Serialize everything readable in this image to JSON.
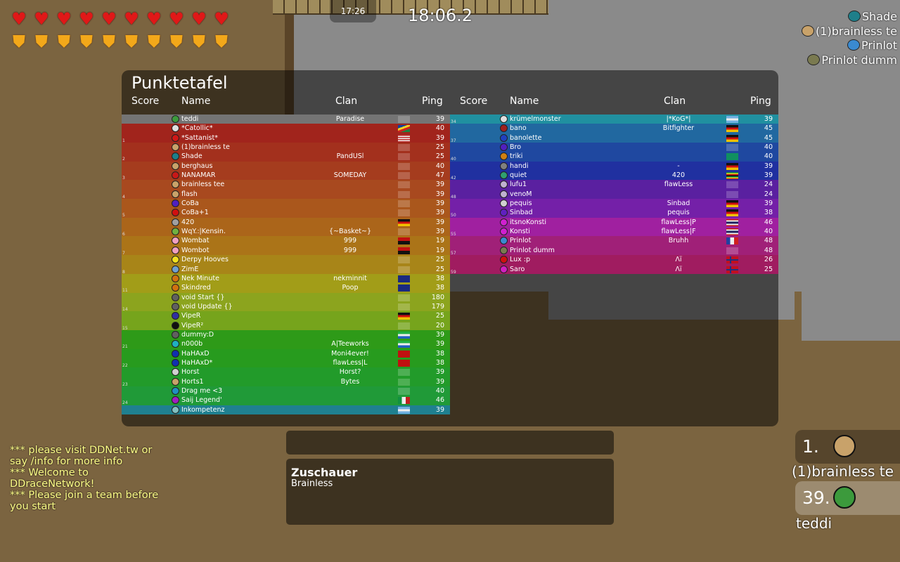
{
  "hud": {
    "hearts": 10,
    "shields": 10,
    "clock": "17:26",
    "race_time": "18:06.2"
  },
  "players_nearby": [
    {
      "name": "Shade",
      "color": "#1f7f8a"
    },
    {
      "name": "(1)brainless te",
      "color": "#c8a26a"
    },
    {
      "name": "Prinlot",
      "color": "#3a8ad0"
    },
    {
      "name": "Prinlot dumm",
      "color": "#7a7a50"
    }
  ],
  "scoreboard": {
    "title": "Punktetafel",
    "headers": {
      "score": "Score",
      "name": "Name",
      "clan": "Clan",
      "ping": "Ping"
    },
    "left": [
      {
        "team": "",
        "name": "teddi",
        "clan": "Paradise",
        "flag": "default",
        "ping": "39",
        "color": "#747474",
        "skin": "#3c9a3c"
      },
      {
        "team": "",
        "name": "*Catollic*",
        "clan": "",
        "flag": "SC",
        "ping": "40",
        "color": "#a1241c",
        "skin": "#e0e0e0"
      },
      {
        "team": "1",
        "name": "*Sattanist*",
        "clan": "",
        "flag": "US",
        "ping": "39",
        "color": "#a1241c",
        "skin": "#d01818"
      },
      {
        "team": "",
        "name": "(1)brainless te",
        "clan": "",
        "flag": "default",
        "ping": "25",
        "color": "#a3301d",
        "skin": "#c8a26a"
      },
      {
        "team": "2",
        "name": "Shade",
        "clan": "PandUSl",
        "flag": "default",
        "ping": "25",
        "color": "#a3301d",
        "skin": "#1f7f8a"
      },
      {
        "team": "",
        "name": "berghaus",
        "clan": "",
        "flag": "default",
        "ping": "40",
        "color": "#a53c1e",
        "skin": "#c8a26a"
      },
      {
        "team": "3",
        "name": "NANAMAR",
        "clan": "SOMEDAY",
        "flag": "default",
        "ping": "47",
        "color": "#a53c1e",
        "skin": "#c81818"
      },
      {
        "team": "",
        "name": "brainless tee",
        "clan": "",
        "flag": "default",
        "ping": "39",
        "color": "#a8491f",
        "skin": "#c8a26a"
      },
      {
        "team": "4",
        "name": "flash",
        "clan": "",
        "flag": "default",
        "ping": "39",
        "color": "#a8491f",
        "skin": "#c8a26a"
      },
      {
        "team": "",
        "name": "CoBa",
        "clan": "",
        "flag": "default",
        "ping": "39",
        "color": "#aa571c",
        "skin": "#5020c0"
      },
      {
        "team": "5",
        "name": "CoBa+1",
        "clan": "",
        "flag": "default",
        "ping": "39",
        "color": "#aa571c",
        "skin": "#d01010"
      },
      {
        "team": "",
        "name": "420",
        "clan": "",
        "flag": "DE",
        "ping": "39",
        "color": "#ab651a",
        "skin": "#a0a0a0"
      },
      {
        "team": "6",
        "name": "WqY.:|Kensin.",
        "clan": "{~Basket~}",
        "flag": "default",
        "ping": "39",
        "color": "#ab651a",
        "skin": "#70b040"
      },
      {
        "team": "",
        "name": "Wombat",
        "clan": "999",
        "flag": "AO",
        "ping": "19",
        "color": "#ab7418",
        "skin": "#f0a0c0"
      },
      {
        "team": "7",
        "name": "Wombot",
        "clan": "999",
        "flag": "AO",
        "ping": "19",
        "color": "#ab7418",
        "skin": "#f0a0c0"
      },
      {
        "team": "",
        "name": "Derpy Hooves",
        "clan": "",
        "flag": "default",
        "ping": "25",
        "color": "#a88518",
        "skin": "#f0e020"
      },
      {
        "team": "8",
        "name": "ZimE",
        "clan": "",
        "flag": "default",
        "ping": "25",
        "color": "#a88518",
        "skin": "#70a0d0"
      },
      {
        "team": "",
        "name": "Nek Minute",
        "clan": "nekminnit",
        "flag": "AU",
        "ping": "38",
        "color": "#a29d18",
        "skin": "#d07010"
      },
      {
        "team": "11",
        "name": "Skindred",
        "clan": "Poop",
        "flag": "AU",
        "ping": "38",
        "color": "#a29d18",
        "skin": "#d07010"
      },
      {
        "team": "",
        "name": "void Start {}",
        "clan": "",
        "flag": "default",
        "ping": "180",
        "color": "#8ca41e",
        "skin": "#606060"
      },
      {
        "team": "14",
        "name": "void Update {}",
        "clan": "",
        "flag": "default",
        "ping": "179",
        "color": "#8ca41e",
        "skin": "#606060"
      },
      {
        "team": "",
        "name": "VipeR",
        "clan": "",
        "flag": "DE",
        "ping": "25",
        "color": "#76a41c",
        "skin": "#3030a0"
      },
      {
        "team": "15",
        "name": "VipeR²",
        "clan": "",
        "flag": "default",
        "ping": "20",
        "color": "#76a41c",
        "skin": "#101010"
      },
      {
        "team": "",
        "name": "dummy:D",
        "clan": "",
        "flag": "SL",
        "ping": "39",
        "color": "#2e9a18",
        "skin": "#606060"
      },
      {
        "team": "21",
        "name": "n000b",
        "clan": "A|Teeworks",
        "flag": "SL",
        "ping": "39",
        "color": "#2e9a18",
        "skin": "#20b0c0"
      },
      {
        "team": "",
        "name": "HaHAxD",
        "clan": "Moni4ever!",
        "flag": "AL",
        "ping": "38",
        "color": "#279b1e",
        "skin": "#1030b0"
      },
      {
        "team": "22",
        "name": "HaHAxD*",
        "clan": "flawLess|L",
        "flag": "AL",
        "ping": "38",
        "color": "#279b1e",
        "skin": "#1030b0"
      },
      {
        "team": "",
        "name": "Horst",
        "clan": "Horst?",
        "flag": "default",
        "ping": "39",
        "color": "#229b2a",
        "skin": "#d0d0d0"
      },
      {
        "team": "23",
        "name": "Horts1",
        "clan": "Bytes",
        "flag": "default",
        "ping": "39",
        "color": "#229b2a",
        "skin": "#c8a26a"
      },
      {
        "team": "",
        "name": "Drag me <3",
        "clan": "",
        "flag": "default",
        "ping": "40",
        "color": "#209a38",
        "skin": "#2090c0"
      },
      {
        "team": "24",
        "name": "Saij Legend'",
        "clan": "",
        "flag": "IT",
        "ping": "46",
        "color": "#209a38",
        "skin": "#a020c0"
      },
      {
        "team": "",
        "name": "Inkompetenz",
        "clan": "",
        "flag": "AR",
        "ping": "39",
        "color": "#1f8090",
        "skin": "#80c0c0"
      }
    ],
    "right": [
      {
        "team": "34",
        "name": "krümelmonster",
        "clan": "|*KoG*|",
        "flag": "AR",
        "ping": "39",
        "color": "#2090a0",
        "skin": "#e0e0e0"
      },
      {
        "team": "",
        "name": "bano",
        "clan": "Bitfighter",
        "flag": "DE",
        "ping": "45",
        "color": "#2168a0",
        "skin": "#a02020"
      },
      {
        "team": "37",
        "name": "banolette",
        "clan": "",
        "flag": "DE",
        "ping": "45",
        "color": "#2168a0",
        "skin": "#2040c0"
      },
      {
        "team": "",
        "name": "Bro",
        "clan": "",
        "flag": "default",
        "ping": "40",
        "color": "#1f48a0",
        "skin": "#5020c0"
      },
      {
        "team": "40",
        "name": "triki",
        "clan": "",
        "flag": "GN",
        "ping": "40",
        "color": "#1f48a0",
        "skin": "#d08010"
      },
      {
        "team": "",
        "name": "handi",
        "clan": "-",
        "flag": "DE",
        "ping": "39",
        "color": "#2030a0",
        "skin": "#808080"
      },
      {
        "team": "42",
        "name": "quiet",
        "clan": "420",
        "flag": "ZW",
        "ping": "39",
        "color": "#2030a0",
        "skin": "#30a070"
      },
      {
        "team": "",
        "name": "lufu1",
        "clan": "flawLess",
        "flag": "default",
        "ping": "24",
        "color": "#5a20a0",
        "skin": "#c0b0d0"
      },
      {
        "team": "48",
        "name": "venoM",
        "clan": "",
        "flag": "default",
        "ping": "24",
        "color": "#5a20a0",
        "skin": "#c0b0d0"
      },
      {
        "team": "",
        "name": "pequis",
        "clan": "Sinbad",
        "flag": "DE",
        "ping": "39",
        "color": "#7420a8",
        "skin": "#d0d0d0"
      },
      {
        "team": "50",
        "name": "Sinbad",
        "clan": "pequis",
        "flag": "DE",
        "ping": "38",
        "color": "#7420a8",
        "skin": "#6020c0"
      },
      {
        "team": "",
        "name": "itsnoKonsti",
        "clan": "flawLess|P",
        "flag": "TH",
        "ping": "46",
        "color": "#a020a0",
        "skin": "#d020d0"
      },
      {
        "team": "55",
        "name": "Konsti",
        "clan": "flawLess|F",
        "flag": "TH",
        "ping": "40",
        "color": "#a020a0",
        "skin": "#d020d0"
      },
      {
        "team": "",
        "name": "Prinlot",
        "clan": "Bruhh",
        "flag": "FR",
        "ping": "48",
        "color": "#a02078",
        "skin": "#3a8ad0"
      },
      {
        "team": "57",
        "name": "Prinlot dumm",
        "clan": "",
        "flag": "default",
        "ping": "48",
        "color": "#a02078",
        "skin": "#7a7a50"
      },
      {
        "team": "",
        "name": "Lux :p",
        "clan": "Λï",
        "flag": "NO",
        "ping": "26",
        "color": "#a01c60",
        "skin": "#d01010"
      },
      {
        "team": "59",
        "name": "Saro",
        "clan": "Λï",
        "flag": "NO",
        "ping": "25",
        "color": "#a01c60",
        "skin": "#d020c0"
      }
    ]
  },
  "chat": [
    "*** please visit DDNet.tw or say /info for more info",
    "*** Welcome to DDraceNetwork!",
    "*** Please join a team before you start"
  ],
  "spectators": {
    "title": "Zuschauer",
    "names": "Brainless"
  },
  "ranking": [
    {
      "rank": "1.",
      "name": "(1)brainless te",
      "skin": "#c8a26a"
    },
    {
      "rank": "39.",
      "name": "teddi",
      "skin": "#3c9a3c"
    }
  ]
}
